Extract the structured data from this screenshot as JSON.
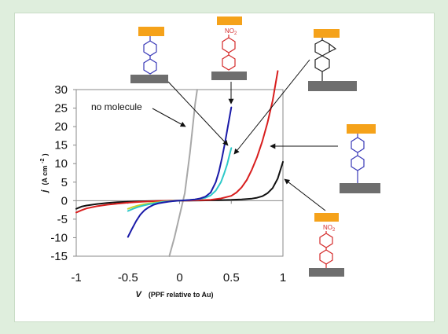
{
  "chart_data": {
    "type": "line",
    "xlabel": {
      "main": "V",
      "sub": "(PPF relative to Au)"
    },
    "ylabel": {
      "main": "j",
      "unit": "(A cm",
      "sup": "-2",
      "close": ")"
    },
    "xlim": [
      -1,
      1
    ],
    "ylim": [
      -15,
      30
    ],
    "x_ticks": [
      -1,
      -0.5,
      0,
      0.5,
      1
    ],
    "x_tick_labels": [
      "-1",
      "-0.5",
      "0",
      "0.5",
      "1"
    ],
    "y_ticks": [
      -15,
      -10,
      -5,
      0,
      5,
      10,
      15,
      20,
      25,
      30
    ],
    "y_tick_labels": [
      "-15",
      "-10",
      "-5",
      "0",
      "5",
      "10",
      "15",
      "20",
      "25",
      "30"
    ],
    "grid": false,
    "annotation": "no molecule",
    "nitro_label": "NO",
    "nitro_sub": "2",
    "colors": {
      "no_molecule": "#a8a8a8",
      "biphenyl": "#1a1aa8",
      "nitrobiphenyl": "#2ec9c9",
      "fluorene": "#d81e1e",
      "terphenyl": "#111111",
      "yellow_green": "#c9d62a",
      "substrate": "#6e6e6e",
      "contact": "#f5a21a",
      "ring_blue": "#3a3ab8",
      "ring_red": "#d42a2a",
      "ring_black": "#222222"
    },
    "series": [
      {
        "key": "no_molecule",
        "x": [
          -0.1,
          -0.05,
          0,
          0.05,
          0.1,
          0.15,
          0.17
        ],
        "y": [
          -15,
          -10,
          -4,
          2,
          13,
          26,
          30
        ]
      },
      {
        "key": "biphenyl",
        "x": [
          -0.5,
          -0.46,
          -0.42,
          -0.38,
          -0.34,
          -0.3,
          -0.25,
          -0.2,
          -0.15,
          -0.1,
          -0.05,
          0,
          0.05,
          0.1,
          0.15,
          0.2,
          0.25,
          0.3,
          0.35,
          0.38,
          0.41,
          0.44,
          0.47,
          0.5
        ],
        "y": [
          -9.8,
          -7.6,
          -5.5,
          -3.8,
          -2.6,
          -1.8,
          -1.1,
          -0.7,
          -0.45,
          -0.25,
          -0.1,
          0,
          0.1,
          0.2,
          0.35,
          0.6,
          1.1,
          2.2,
          5,
          7.8,
          11.5,
          15.8,
          20.5,
          25.2
        ]
      },
      {
        "key": "yellow_green",
        "x": [
          -0.5,
          -0.45,
          -0.4,
          -0.35,
          -0.3,
          -0.25,
          -0.2,
          -0.15,
          -0.1,
          -0.05,
          0
        ],
        "y": [
          -2.2,
          -1.7,
          -1.3,
          -1.0,
          -0.75,
          -0.55,
          -0.4,
          -0.25,
          -0.15,
          -0.06,
          0
        ]
      },
      {
        "key": "nitrobiphenyl",
        "x": [
          -0.5,
          -0.45,
          -0.4,
          -0.35,
          -0.3,
          -0.25,
          -0.2,
          -0.15,
          -0.1,
          -0.05,
          0,
          0.05,
          0.1,
          0.15,
          0.2,
          0.25,
          0.3,
          0.35,
          0.4,
          0.43,
          0.46,
          0.48,
          0.5
        ],
        "y": [
          -2.8,
          -2.2,
          -1.7,
          -1.3,
          -1.0,
          -0.75,
          -0.5,
          -0.3,
          -0.18,
          -0.08,
          0,
          0.1,
          0.2,
          0.3,
          0.5,
          0.8,
          1.4,
          2.7,
          5,
          7.2,
          9.8,
          12,
          14.2
        ]
      },
      {
        "key": "fluorene",
        "x": [
          -1,
          -0.95,
          -0.9,
          -0.8,
          -0.7,
          -0.6,
          -0.5,
          -0.4,
          -0.3,
          -0.2,
          -0.1,
          0,
          0.1,
          0.2,
          0.3,
          0.4,
          0.5,
          0.55,
          0.6,
          0.65,
          0.7,
          0.75,
          0.8,
          0.85,
          0.9,
          0.95
        ],
        "y": [
          -3.2,
          -2.6,
          -2.1,
          -1.5,
          -1.1,
          -0.8,
          -0.55,
          -0.35,
          -0.2,
          -0.1,
          -0.03,
          0,
          0.05,
          0.12,
          0.25,
          0.6,
          1.3,
          2.2,
          3.6,
          5.6,
          8.4,
          11.8,
          16,
          21,
          27,
          35
        ]
      },
      {
        "key": "terphenyl",
        "x": [
          -1,
          -0.95,
          -0.9,
          -0.8,
          -0.7,
          -0.6,
          -0.5,
          -0.4,
          -0.3,
          -0.2,
          -0.1,
          0,
          0.1,
          0.2,
          0.3,
          0.4,
          0.5,
          0.6,
          0.7,
          0.75,
          0.8,
          0.85,
          0.9,
          0.95,
          1.0
        ],
        "y": [
          -2.2,
          -1.6,
          -1.3,
          -0.9,
          -0.6,
          -0.4,
          -0.3,
          -0.2,
          -0.12,
          -0.06,
          -0.02,
          0,
          0.03,
          0.06,
          0.1,
          0.15,
          0.22,
          0.35,
          0.55,
          0.8,
          1.2,
          2.0,
          3.4,
          6.0,
          10.5
        ]
      }
    ]
  }
}
